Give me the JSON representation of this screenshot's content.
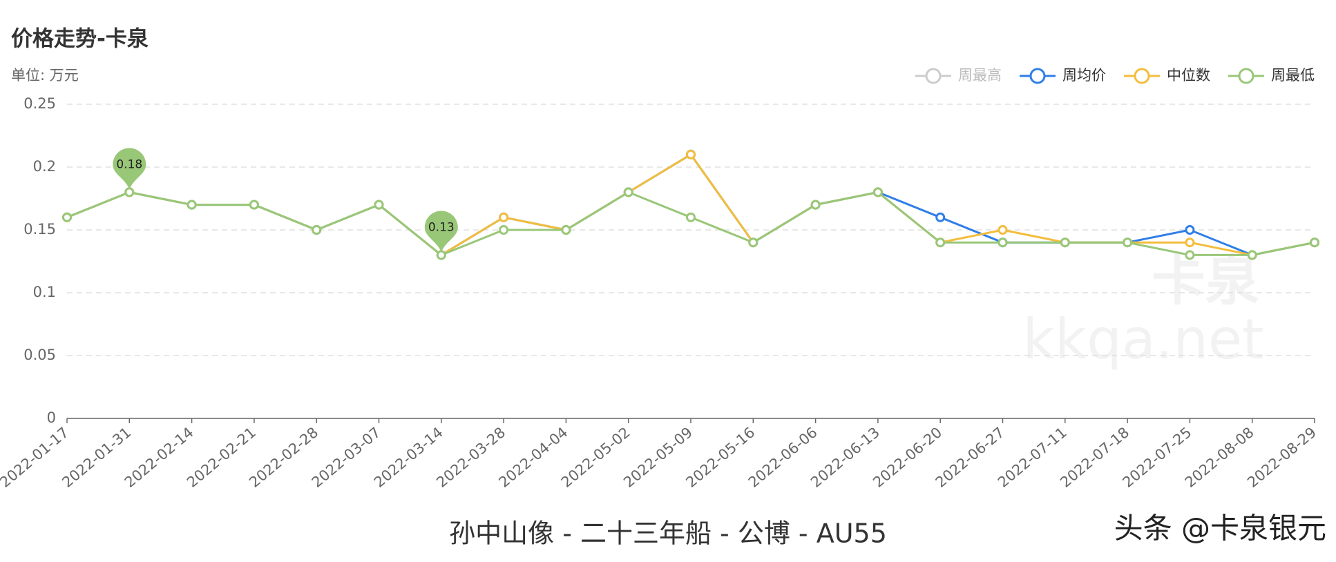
{
  "chart_data": {
    "type": "line",
    "title": "价格走势-卡泉",
    "subtitle": "单位: 万元",
    "caption": "孙中山像 - 二十三年船 - 公博 - AU55",
    "watermark": [
      "卡泉",
      "kkqa.net"
    ],
    "overlay_text": "头条 @卡泉银元",
    "categories": [
      "2022-01-17",
      "2022-01-31",
      "2022-02-14",
      "2022-02-21",
      "2022-02-28",
      "2022-03-07",
      "2022-03-14",
      "2022-03-28",
      "2022-04-04",
      "2022-05-02",
      "2022-05-09",
      "2022-05-16",
      "2022-06-06",
      "2022-06-13",
      "2022-06-20",
      "2022-06-27",
      "2022-07-11",
      "2022-07-18",
      "2022-07-25",
      "2022-08-08",
      "2022-08-29"
    ],
    "series": [
      {
        "name": "周最高",
        "color": "#cccccc",
        "visible": false
      },
      {
        "name": "周均价",
        "color": "#2f7ee8",
        "values": [
          0.16,
          0.18,
          0.17,
          0.17,
          0.15,
          0.17,
          0.13,
          0.16,
          0.15,
          0.18,
          0.21,
          0.14,
          0.17,
          0.18,
          0.16,
          0.14,
          0.14,
          0.14,
          0.15,
          0.13,
          0.14
        ]
      },
      {
        "name": "中位数",
        "color": "#f3bd3c",
        "values": [
          0.16,
          0.18,
          0.17,
          0.17,
          0.15,
          0.17,
          0.13,
          0.16,
          0.15,
          0.18,
          0.21,
          0.14,
          0.17,
          0.18,
          0.14,
          0.15,
          0.14,
          0.14,
          0.14,
          0.13,
          0.14
        ]
      },
      {
        "name": "周最低",
        "color": "#99c778",
        "values": [
          0.16,
          0.18,
          0.17,
          0.17,
          0.15,
          0.17,
          0.13,
          0.15,
          0.15,
          0.18,
          0.16,
          0.14,
          0.17,
          0.18,
          0.14,
          0.14,
          0.14,
          0.14,
          0.13,
          0.13,
          0.14
        ],
        "markers": [
          {
            "x": "2022-01-31",
            "value": 0.18
          },
          {
            "x": "2022-03-14",
            "value": 0.13
          }
        ]
      }
    ],
    "ylim": [
      0,
      0.25
    ],
    "yticks": [
      0,
      0.05,
      0.1,
      0.15,
      0.2,
      0.25
    ],
    "grid": true,
    "legend": "top-right"
  }
}
